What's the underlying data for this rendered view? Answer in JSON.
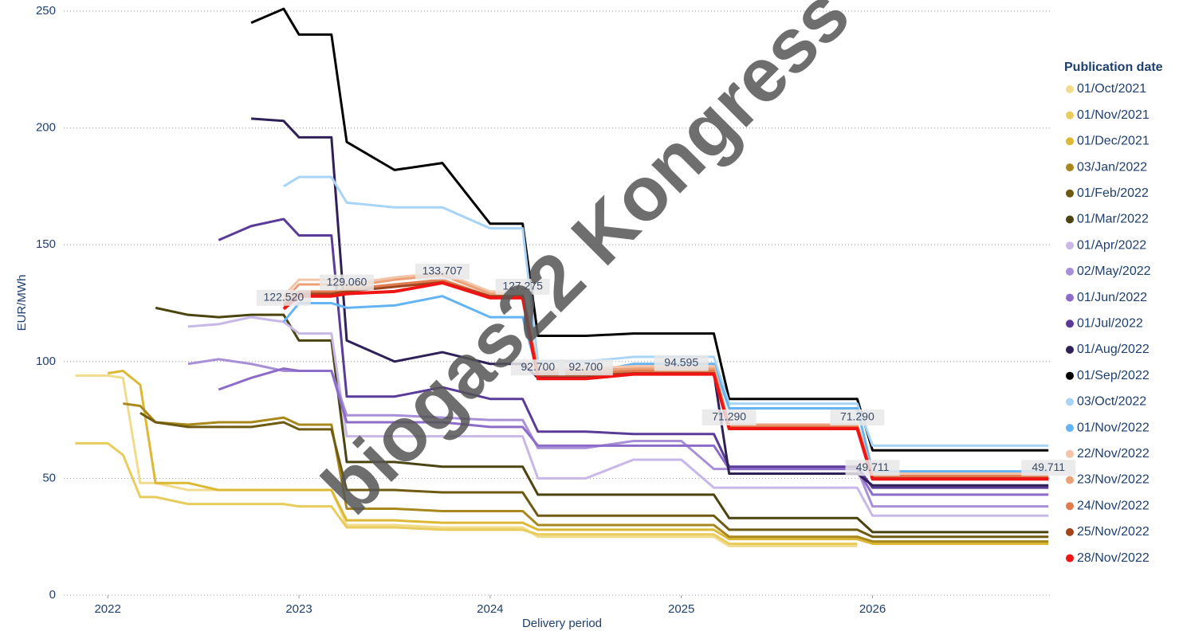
{
  "chart_data": {
    "type": "line",
    "watermark": "biogas22 Kongress",
    "y_label": "EUR/MWh",
    "x_label": "Delivery period",
    "legend_title": "Publication date",
    "legend": "right",
    "grid": true,
    "xlim": [
      2021.77,
      2026.94
    ],
    "xticks": [
      2022,
      2023,
      2024,
      2025,
      2026
    ],
    "ylim": [
      0,
      250
    ],
    "yticks": [
      0,
      50,
      100,
      150,
      200,
      250
    ],
    "x": [
      2021.83,
      2022.0,
      2022.08,
      2022.17,
      2022.25,
      2022.42,
      2022.58,
      2022.75,
      2022.92,
      2023.0,
      2023.17,
      2023.25,
      2023.5,
      2023.75,
      2024.0,
      2024.17,
      2024.25,
      2024.5,
      2024.75,
      2025.0,
      2025.17,
      2025.25,
      2025.92,
      2026.0,
      2026.92
    ],
    "series": [
      {
        "name": "01/Oct/2021",
        "color": "#f0dc8c",
        "values": [
          94,
          94,
          93,
          48,
          48,
          45,
          45,
          45,
          45,
          45,
          45,
          30,
          30,
          29,
          29,
          29,
          25,
          25,
          25,
          25,
          25,
          21,
          21,
          null,
          null
        ]
      },
      {
        "name": "01/Nov/2021",
        "color": "#e8cc5c",
        "values": [
          65,
          65,
          60,
          42,
          42,
          39,
          39,
          39,
          39,
          38,
          38,
          29,
          29,
          28,
          28,
          28,
          26,
          26,
          26,
          26,
          26,
          22,
          22,
          null,
          null
        ]
      },
      {
        "name": "01/Dec/2021",
        "color": "#dcb834",
        "values": [
          null,
          95,
          96,
          90,
          48,
          48,
          45,
          45,
          45,
          45,
          45,
          32,
          32,
          31,
          31,
          31,
          28,
          28,
          28,
          28,
          28,
          24,
          24,
          22,
          22
        ]
      },
      {
        "name": "03/Jan/2022",
        "color": "#a8881c",
        "values": [
          null,
          null,
          82,
          81,
          74,
          73,
          74,
          74,
          76,
          73,
          73,
          37,
          37,
          36,
          36,
          36,
          30,
          30,
          30,
          30,
          30,
          25,
          25,
          23,
          23
        ]
      },
      {
        "name": "01/Feb/2022",
        "color": "#6e5a10",
        "values": [
          null,
          null,
          null,
          78,
          74,
          72,
          72,
          72,
          74,
          71,
          71,
          45,
          45,
          44,
          44,
          44,
          34,
          34,
          34,
          34,
          34,
          28,
          28,
          25,
          25
        ]
      },
      {
        "name": "01/Mar/2022",
        "color": "#4a4410",
        "values": [
          null,
          null,
          null,
          null,
          123,
          120,
          119,
          120,
          120,
          109,
          109,
          57,
          57,
          55,
          55,
          55,
          43,
          43,
          43,
          43,
          43,
          33,
          33,
          27,
          27
        ]
      },
      {
        "name": "01/Apr/2022",
        "color": "#c8b8e8",
        "values": [
          null,
          null,
          null,
          null,
          null,
          115,
          116,
          119,
          117,
          112,
          112,
          68,
          68,
          68,
          68,
          68,
          50,
          50,
          58,
          58,
          46,
          46,
          46,
          34,
          34
        ]
      },
      {
        "name": "02/May/2022",
        "color": "#a890d8",
        "values": [
          null,
          null,
          null,
          null,
          null,
          99,
          101,
          99,
          96,
          96,
          96,
          77,
          77,
          76,
          75,
          75,
          63,
          63,
          66,
          66,
          54,
          54,
          54,
          38,
          38
        ]
      },
      {
        "name": "01/Jun/2022",
        "color": "#8c6cc8",
        "values": [
          null,
          null,
          null,
          null,
          null,
          null,
          88,
          93,
          97,
          96,
          96,
          74,
          74,
          74,
          72,
          72,
          64,
          64,
          64,
          64,
          64,
          54,
          54,
          43,
          43
        ]
      },
      {
        "name": "01/Jul/2022",
        "color": "#5a3c98",
        "values": [
          null,
          null,
          null,
          null,
          null,
          null,
          152,
          158,
          161,
          154,
          154,
          85,
          85,
          89,
          84,
          84,
          70,
          70,
          69,
          69,
          69,
          55,
          55,
          46,
          46
        ]
      },
      {
        "name": "01/Aug/2022",
        "color": "#302058",
        "values": [
          null,
          null,
          null,
          null,
          null,
          null,
          null,
          204,
          203,
          196,
          196,
          109,
          100,
          104,
          99,
          99,
          93,
          93,
          95,
          95,
          95,
          52,
          52,
          47,
          47
        ]
      },
      {
        "name": "01/Sep/2022",
        "color": "#000000",
        "values": [
          null,
          null,
          null,
          null,
          null,
          null,
          null,
          245,
          251,
          240,
          240,
          194,
          182,
          185,
          159,
          159,
          111,
          111,
          112,
          112,
          112,
          84,
          84,
          62,
          62
        ]
      },
      {
        "name": "03/Oct/2022",
        "color": "#a8d4f8",
        "values": [
          null,
          null,
          null,
          null,
          null,
          null,
          null,
          null,
          175,
          179,
          179,
          168,
          166,
          166,
          157,
          157,
          100,
          100,
          102,
          102,
          102,
          82,
          82,
          64,
          64
        ]
      },
      {
        "name": "01/Nov/2022",
        "color": "#64b4f4",
        "values": [
          null,
          null,
          null,
          null,
          null,
          null,
          null,
          null,
          117,
          125,
          125,
          123,
          124,
          128,
          119,
          119,
          95,
          95,
          99,
          99,
          99,
          80,
          80,
          53,
          53
        ]
      },
      {
        "name": "22/Nov/2022",
        "color": "#f4c4a8",
        "values": [
          null,
          null,
          null,
          null,
          null,
          null,
          null,
          null,
          128,
          135,
          135,
          133,
          136,
          138,
          130,
          130,
          97,
          97,
          98,
          98,
          98,
          73,
          73,
          52,
          52
        ]
      },
      {
        "name": "23/Nov/2022",
        "color": "#eca078",
        "values": [
          null,
          null,
          null,
          null,
          null,
          null,
          null,
          null,
          126,
          133,
          133,
          132,
          135,
          137,
          129,
          129,
          96,
          96,
          97,
          97,
          97,
          73,
          73,
          51,
          51
        ]
      },
      {
        "name": "24/Nov/2022",
        "color": "#e07c50",
        "values": [
          null,
          null,
          null,
          null,
          null,
          null,
          null,
          null,
          125,
          130,
          130,
          131,
          133,
          135,
          128,
          128,
          95,
          95,
          96,
          96,
          96,
          72,
          72,
          51,
          51
        ]
      },
      {
        "name": "25/Nov/2022",
        "color": "#a0441c",
        "values": [
          null,
          null,
          null,
          null,
          null,
          null,
          null,
          null,
          124,
          129,
          129,
          130,
          132,
          134,
          128,
          128,
          94,
          94,
          95,
          95,
          95,
          71.5,
          71.5,
          50,
          50
        ]
      },
      {
        "name": "28/Nov/2022",
        "color": "#f01414",
        "values": [
          null,
          null,
          null,
          null,
          null,
          null,
          null,
          null,
          122.52,
          128,
          128,
          129.06,
          130,
          133.707,
          127.275,
          127.275,
          92.7,
          92.7,
          94.595,
          94.595,
          94.595,
          71.29,
          71.29,
          49.711,
          49.711
        ],
        "value_labels": [
          null,
          null,
          null,
          null,
          null,
          null,
          null,
          null,
          "122.520",
          null,
          null,
          "129.060",
          null,
          "133.707",
          null,
          "127.275",
          "92.700",
          "92.700",
          null,
          "94.595",
          null,
          "71.290",
          "71.290",
          "49.711",
          "49.711"
        ]
      }
    ]
  }
}
